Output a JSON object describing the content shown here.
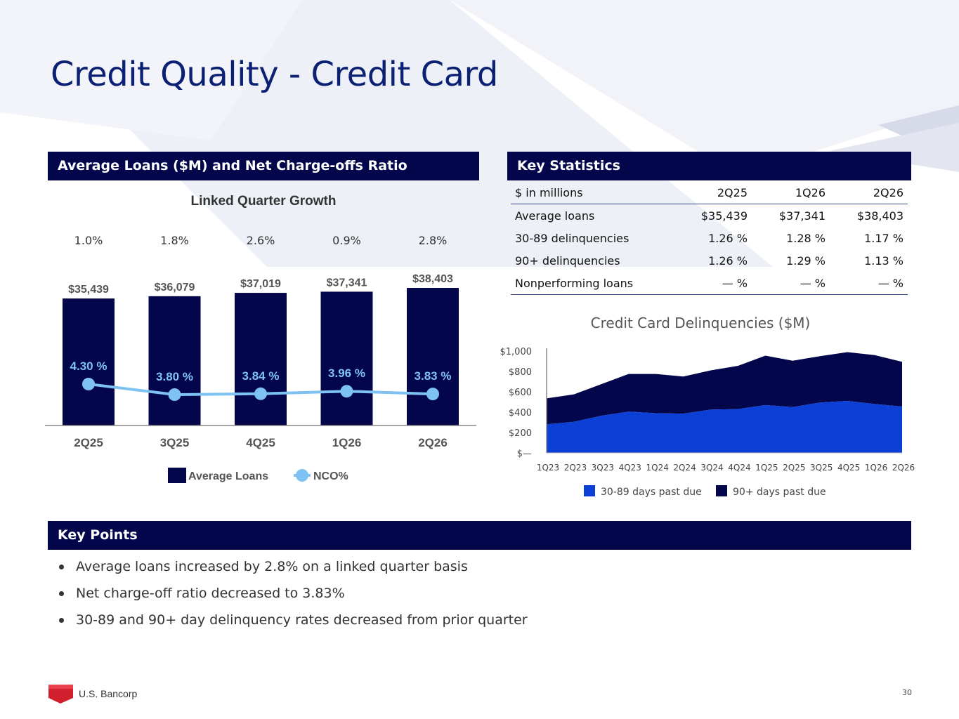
{
  "page": {
    "title": "Credit Quality - Credit Card",
    "page_number": "30",
    "logo_text": "U.S. Bancorp",
    "colors": {
      "navy": "#03064a",
      "title_blue": "#0c2074",
      "nco_line": "#7ec2f4",
      "delinq_30_89": "#0b3fd6",
      "delinq_90_plus": "#03064a"
    }
  },
  "left_panel": {
    "header": "Average Loans ($M) and Net Charge-offs Ratio"
  },
  "right_panel": {
    "header": "Key Statistics"
  },
  "key_stats": {
    "header_row": [
      "$ in millions",
      "2Q25",
      "1Q26",
      "2Q26"
    ],
    "rows": [
      [
        "Average loans",
        "$35,439",
        "$37,341",
        "$38,403"
      ],
      [
        "30-89 delinquencies",
        "1.26 %",
        "1.28 %",
        "1.17 %"
      ],
      [
        "90+ delinquencies",
        "1.26 %",
        "1.29 %",
        "1.13 %"
      ],
      [
        "Nonperforming loans",
        "— %",
        "— %",
        "— %"
      ]
    ]
  },
  "key_points": {
    "header": "Key Points",
    "items": [
      "Average loans increased by 2.8% on a linked quarter basis",
      "Net charge-off ratio decreased to 3.83%",
      "30-89 and 90+ day delinquency rates decreased from prior quarter"
    ]
  },
  "chart_data": [
    {
      "type": "bar",
      "title": "Linked Quarter Growth",
      "categories": [
        "2Q25",
        "3Q25",
        "4Q25",
        "1Q26",
        "2Q26"
      ],
      "growth_labels": [
        "1.0%",
        "1.8%",
        "2.6%",
        "0.9%",
        "2.8%"
      ],
      "series": [
        {
          "name": "Average Loans",
          "type": "bar",
          "values": [
            35439,
            36079,
            37019,
            37341,
            38403
          ],
          "labels": [
            "$35,439",
            "$36,079",
            "$37,019",
            "$37,341",
            "$38,403"
          ]
        },
        {
          "name": "NCO%",
          "type": "line",
          "values": [
            4.3,
            3.8,
            3.84,
            3.96,
            3.83
          ],
          "labels": [
            "4.30 %",
            "3.80 %",
            "3.84 %",
            "3.96 %",
            "3.83 %"
          ]
        }
      ],
      "legend": "bottom"
    },
    {
      "type": "area",
      "title": "Credit Card Delinquencies ($M)",
      "categories": [
        "1Q23",
        "2Q23",
        "3Q23",
        "4Q23",
        "1Q24",
        "2Q24",
        "3Q24",
        "4Q24",
        "1Q25",
        "2Q25",
        "3Q25",
        "4Q25",
        "1Q26",
        "2Q26"
      ],
      "stacked": true,
      "y_ticks": [
        "$—",
        "$200",
        "$400",
        "$600",
        "$800",
        "$1,000"
      ],
      "ylim": [
        0,
        1000
      ],
      "series": [
        {
          "name": "30-89 days past due",
          "values": [
            280,
            305,
            365,
            405,
            390,
            385,
            425,
            430,
            470,
            450,
            495,
            510,
            480,
            455
          ]
        },
        {
          "name": "90+ days past due",
          "values": [
            255,
            270,
            310,
            370,
            385,
            365,
            385,
            425,
            485,
            455,
            455,
            480,
            480,
            440
          ]
        }
      ],
      "legend": "bottom"
    }
  ]
}
